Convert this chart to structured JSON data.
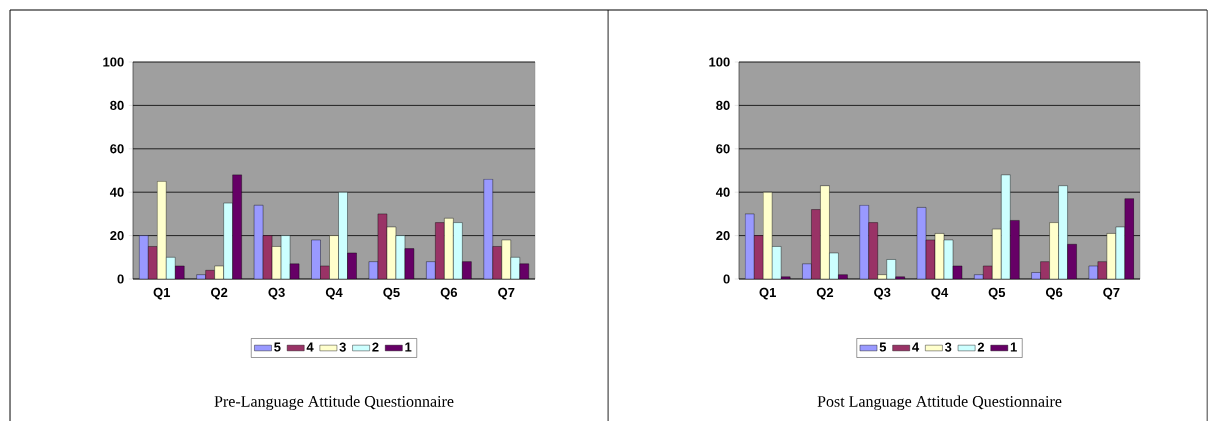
{
  "chart_data": [
    {
      "type": "bar",
      "title": "Pre-Language Attitude Questionnaire",
      "categories": [
        "Q1",
        "Q2",
        "Q3",
        "Q4",
        "Q5",
        "Q6",
        "Q7"
      ],
      "ylim": [
        0,
        100
      ],
      "yticks": [
        0,
        20,
        40,
        60,
        80,
        100
      ],
      "grid": "y",
      "legend": "bottom",
      "series": [
        {
          "name": "5",
          "color": "#9999ff",
          "values": [
            20,
            2,
            34,
            18,
            8,
            8,
            46
          ]
        },
        {
          "name": "4",
          "color": "#993366",
          "values": [
            15,
            4,
            20,
            6,
            30,
            26,
            15
          ]
        },
        {
          "name": "3",
          "color": "#ffffcc",
          "values": [
            45,
            6,
            15,
            20,
            24,
            28,
            18
          ]
        },
        {
          "name": "2",
          "color": "#ccffff",
          "values": [
            10,
            35,
            20,
            40,
            20,
            26,
            10
          ]
        },
        {
          "name": "1",
          "color": "#660066",
          "values": [
            6,
            48,
            7,
            12,
            14,
            8,
            7
          ]
        }
      ]
    },
    {
      "type": "bar",
      "title": "Post Language Attitude Questionnaire",
      "categories": [
        "Q1",
        "Q2",
        "Q3",
        "Q4",
        "Q5",
        "Q6",
        "Q7"
      ],
      "ylim": [
        0,
        100
      ],
      "yticks": [
        0,
        20,
        40,
        60,
        80,
        100
      ],
      "grid": "y",
      "legend": "bottom",
      "series": [
        {
          "name": "5",
          "color": "#9999ff",
          "values": [
            30,
            7,
            34,
            33,
            2,
            3,
            6
          ]
        },
        {
          "name": "4",
          "color": "#993366",
          "values": [
            20,
            32,
            26,
            18,
            6,
            8,
            8
          ]
        },
        {
          "name": "3",
          "color": "#ffffcc",
          "values": [
            40,
            43,
            2,
            21,
            23,
            26,
            21
          ]
        },
        {
          "name": "2",
          "color": "#ccffff",
          "values": [
            15,
            12,
            9,
            18,
            48,
            43,
            24
          ]
        },
        {
          "name": "1",
          "color": "#660066",
          "values": [
            1,
            2,
            1,
            6,
            27,
            16,
            37
          ]
        }
      ]
    }
  ]
}
